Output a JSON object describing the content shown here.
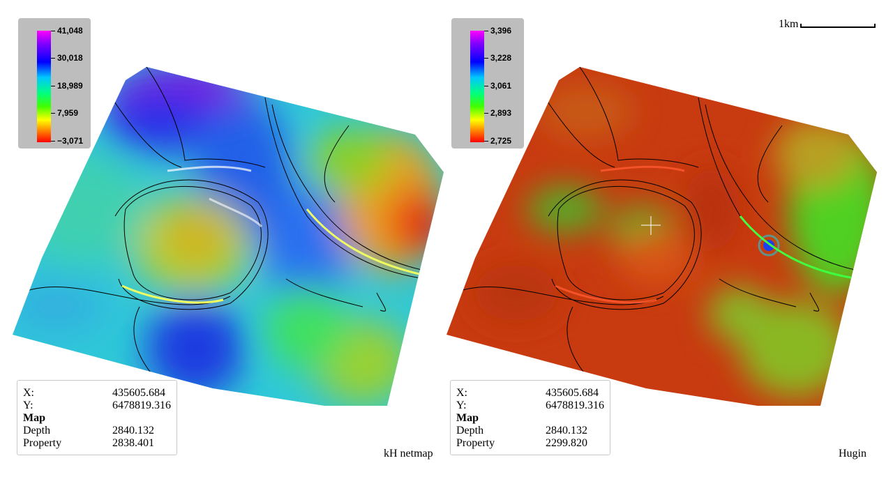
{
  "scale_bar": {
    "label": "1km"
  },
  "maps": [
    {
      "id": "left",
      "caption": "kH netmap",
      "colorbar": {
        "labels": [
          "41,048",
          "30,018",
          "18,989",
          "7,959",
          "−3,071"
        ],
        "colors": [
          "#ff00ff",
          "#0000ff",
          "#00ff80",
          "#ffff00",
          "#ff0000"
        ]
      },
      "readout": {
        "x_label": "X:",
        "x_value": "435605.684",
        "y_label": "Y:",
        "y_value": "6478819.316",
        "section": "Map",
        "depth_label": "Depth",
        "depth_value": "2840.132",
        "property_label": "Property",
        "property_value": "2838.401"
      }
    },
    {
      "id": "right",
      "caption": "Hugin",
      "colorbar": {
        "labels": [
          "3,396",
          "3,228",
          "3,061",
          "2,893",
          "2,725"
        ],
        "colors": [
          "#ff00ff",
          "#0000ff",
          "#00ff80",
          "#ffff00",
          "#ff0000"
        ]
      },
      "readout": {
        "x_label": "X:",
        "x_value": "435605.684",
        "y_label": "Y:",
        "y_value": "6478819.316",
        "section": "Map",
        "depth_label": "Depth",
        "depth_value": "2840.132",
        "property_label": "Property",
        "property_value": "2299.820"
      }
    }
  ]
}
